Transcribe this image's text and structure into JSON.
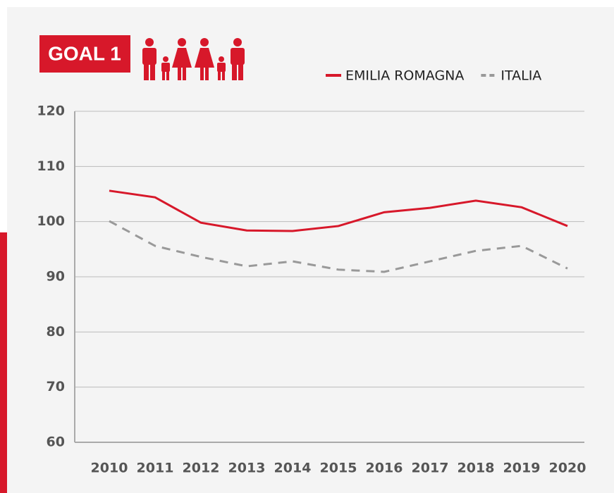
{
  "chart_data": {
    "type": "line",
    "title": "GOAL 1",
    "categories": [
      "2010",
      "2011",
      "2012",
      "2013",
      "2014",
      "2015",
      "2016",
      "2017",
      "2018",
      "2019",
      "2020"
    ],
    "series": [
      {
        "name": "EMILIA ROMAGNA",
        "color": "#d7182a",
        "values": [
          105.6,
          104.4,
          99.8,
          98.4,
          98.3,
          99.2,
          101.7,
          102.5,
          103.8,
          102.6,
          99.2
        ]
      },
      {
        "name": "ITALIA",
        "color": "#999999",
        "dashed": true,
        "values": [
          100.1,
          95.6,
          93.6,
          91.9,
          92.8,
          91.3,
          90.9,
          92.8,
          94.7,
          95.6,
          91.5
        ]
      }
    ],
    "ylim": [
      60,
      120
    ],
    "yticks": [
      60,
      70,
      80,
      90,
      100,
      110,
      120
    ],
    "grid": true,
    "legend": "top-right"
  }
}
